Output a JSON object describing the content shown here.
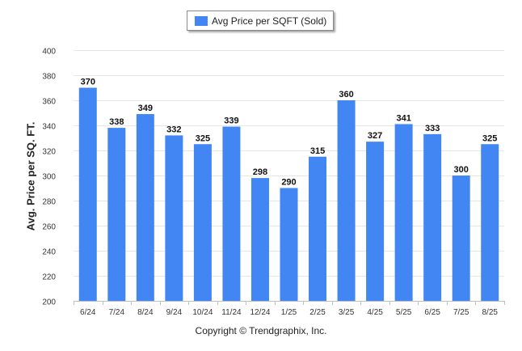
{
  "chart_data": {
    "type": "bar",
    "categories": [
      "6/24",
      "7/24",
      "8/24",
      "9/24",
      "10/24",
      "11/24",
      "12/24",
      "1/25",
      "2/25",
      "3/25",
      "4/25",
      "5/25",
      "6/25",
      "7/25",
      "8/25"
    ],
    "series": [
      {
        "name": "Avg Price per SQFT (Sold)",
        "values": [
          370,
          338,
          349,
          332,
          325,
          339,
          298,
          290,
          315,
          360,
          327,
          341,
          333,
          300,
          325
        ]
      }
    ],
    "ylabel": "Avg. Price per SQ. FT.",
    "xlabel": "",
    "ylim": [
      200,
      400
    ],
    "yticks": [
      200,
      220,
      240,
      260,
      280,
      300,
      320,
      340,
      360,
      380,
      400
    ],
    "grid": true,
    "legend_position": "top-center",
    "bar_color": "#4286f4",
    "data_labels": true
  },
  "legend": {
    "label": "Avg Price per SQFT (Sold)",
    "color": "#4286f4"
  },
  "footer": {
    "copyright": "Copyright © Trendgraphix, Inc."
  }
}
